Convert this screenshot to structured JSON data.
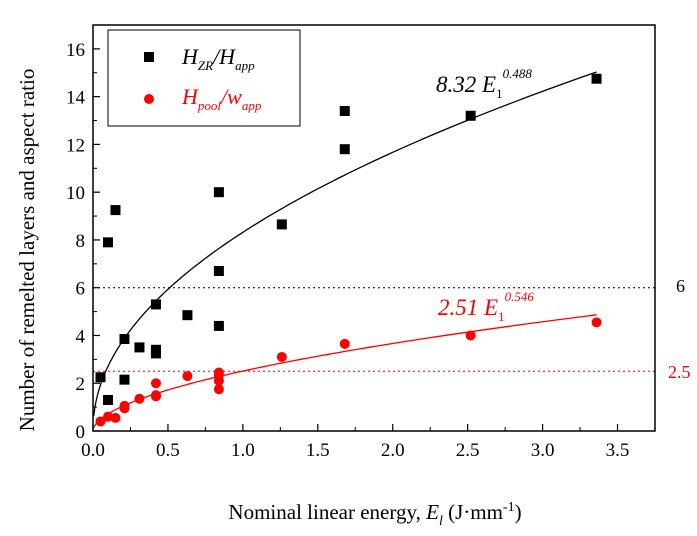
{
  "chart_data": {
    "type": "scatter",
    "xlabel": "Nominal linear energy, ",
    "xlabel_symbol": "E",
    "xlabel_symbol_sub": "l",
    "xlabel_unit_open": " (J·mm",
    "xlabel_unit_sup": "-1",
    "xlabel_unit_close": ")",
    "ylabel": "Number of remelted layers and aspect ratio",
    "xlim": [
      0,
      3.75
    ],
    "ylim": [
      0,
      17
    ],
    "x_ticks": [
      "0.0",
      "0.5",
      "1.0",
      "1.5",
      "2.0",
      "2.5",
      "3.0",
      "3.5"
    ],
    "y_ticks": [
      "0",
      "2",
      "4",
      "6",
      "8",
      "10",
      "12",
      "14",
      "16"
    ],
    "x_tick_values": [
      0,
      0.5,
      1.0,
      1.5,
      2.0,
      2.5,
      3.0,
      3.5
    ],
    "y_tick_values": [
      0,
      2,
      4,
      6,
      8,
      10,
      12,
      14,
      16
    ],
    "legend_position": "top-left",
    "series": [
      {
        "legend_main": "H",
        "legend_sub1": "ZR",
        "legend_mid": "/H",
        "legend_sub2": "app",
        "marker": "square",
        "color": "#000000",
        "x": [
          0.05,
          0.1,
          0.1,
          0.15,
          0.21,
          0.21,
          0.31,
          0.42,
          0.42,
          0.42,
          0.63,
          0.84,
          0.84,
          0.84,
          1.26,
          1.68,
          1.68,
          2.52,
          3.36
        ],
        "y": [
          2.25,
          1.3,
          7.9,
          9.25,
          3.85,
          2.15,
          3.5,
          5.3,
          3.4,
          3.25,
          4.85,
          10.0,
          6.7,
          4.4,
          8.65,
          13.4,
          11.8,
          13.2,
          14.75
        ],
        "fit": {
          "a": 8.32,
          "b": 0.488,
          "label_coef": "8.32",
          "label_var": "E",
          "label_sub": "1",
          "label_exp": "0.488"
        }
      },
      {
        "legend_main": "H",
        "legend_sub1": "pool",
        "legend_mid": "/w",
        "legend_sub2": "app",
        "marker": "circle",
        "color": "#ff0000",
        "x": [
          0.05,
          0.1,
          0.15,
          0.21,
          0.21,
          0.31,
          0.42,
          0.42,
          0.42,
          0.63,
          0.84,
          0.84,
          0.84,
          0.84,
          1.26,
          1.68,
          2.52,
          3.36
        ],
        "y": [
          0.4,
          0.6,
          0.55,
          0.95,
          1.05,
          1.35,
          1.45,
          1.5,
          2.0,
          2.3,
          1.75,
          2.1,
          2.35,
          2.45,
          3.1,
          3.65,
          4.0,
          4.55
        ],
        "fit": {
          "a": 2.51,
          "b": 0.546,
          "label_coef": "2.51",
          "label_var": "E",
          "label_sub": "1",
          "label_exp": "0.546"
        }
      }
    ],
    "reference_lines": [
      {
        "y": 6,
        "label": "6",
        "color": "#000000"
      },
      {
        "y": 2.5,
        "label": "2.5",
        "color": "#ff0000"
      }
    ],
    "grid": false
  }
}
